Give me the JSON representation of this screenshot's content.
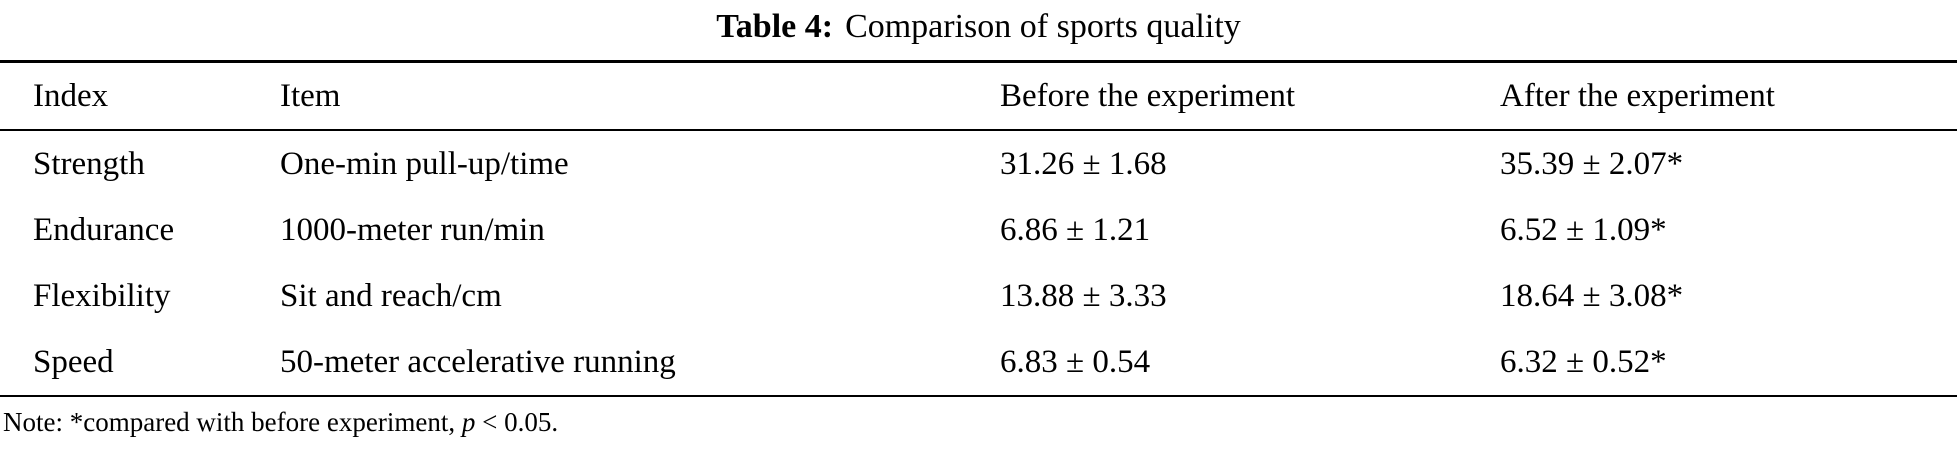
{
  "title": {
    "label": "Table 4:",
    "text": "Comparison of sports quality"
  },
  "table": {
    "headers": [
      "Index",
      "Item",
      "Before the experiment",
      "After the experiment"
    ],
    "rows": [
      {
        "index": "Strength",
        "item": "One-min pull-up/time",
        "before": "31.26 ± 1.68",
        "after": "35.39 ± 2.07*"
      },
      {
        "index": "Endurance",
        "item": "1000-meter run/min",
        "before": "6.86 ± 1.21",
        "after": "6.52 ± 1.09*"
      },
      {
        "index": "Flexibility",
        "item": "Sit and reach/cm",
        "before": "13.88 ± 3.33",
        "after": "18.64 ± 3.08*"
      },
      {
        "index": "Speed",
        "item": "50-meter accelerative running",
        "before": "6.83 ± 0.54",
        "after": "6.32 ± 0.52*"
      }
    ]
  },
  "note": {
    "prefix": "Note: *compared with before experiment, ",
    "p_var": "p",
    "suffix": " < 0.05."
  },
  "chart_data": {
    "type": "table",
    "title": "Table 4: Comparison of sports quality",
    "columns": [
      "Index",
      "Item",
      "Before the experiment",
      "After the experiment"
    ],
    "rows": [
      [
        "Strength",
        "One-min pull-up/time",
        "31.26 ± 1.68",
        "35.39 ± 2.07*"
      ],
      [
        "Endurance",
        "1000-meter run/min",
        "6.86 ± 1.21",
        "6.52 ± 1.09*"
      ],
      [
        "Flexibility",
        "Sit and reach/cm",
        "13.88 ± 3.33",
        "18.64 ± 3.08*"
      ],
      [
        "Speed",
        "50-meter accelerative running",
        "6.83 ± 0.54",
        "6.32 ± 0.52*"
      ]
    ],
    "footnote": "Note: *compared with before experiment, p < 0.05."
  }
}
